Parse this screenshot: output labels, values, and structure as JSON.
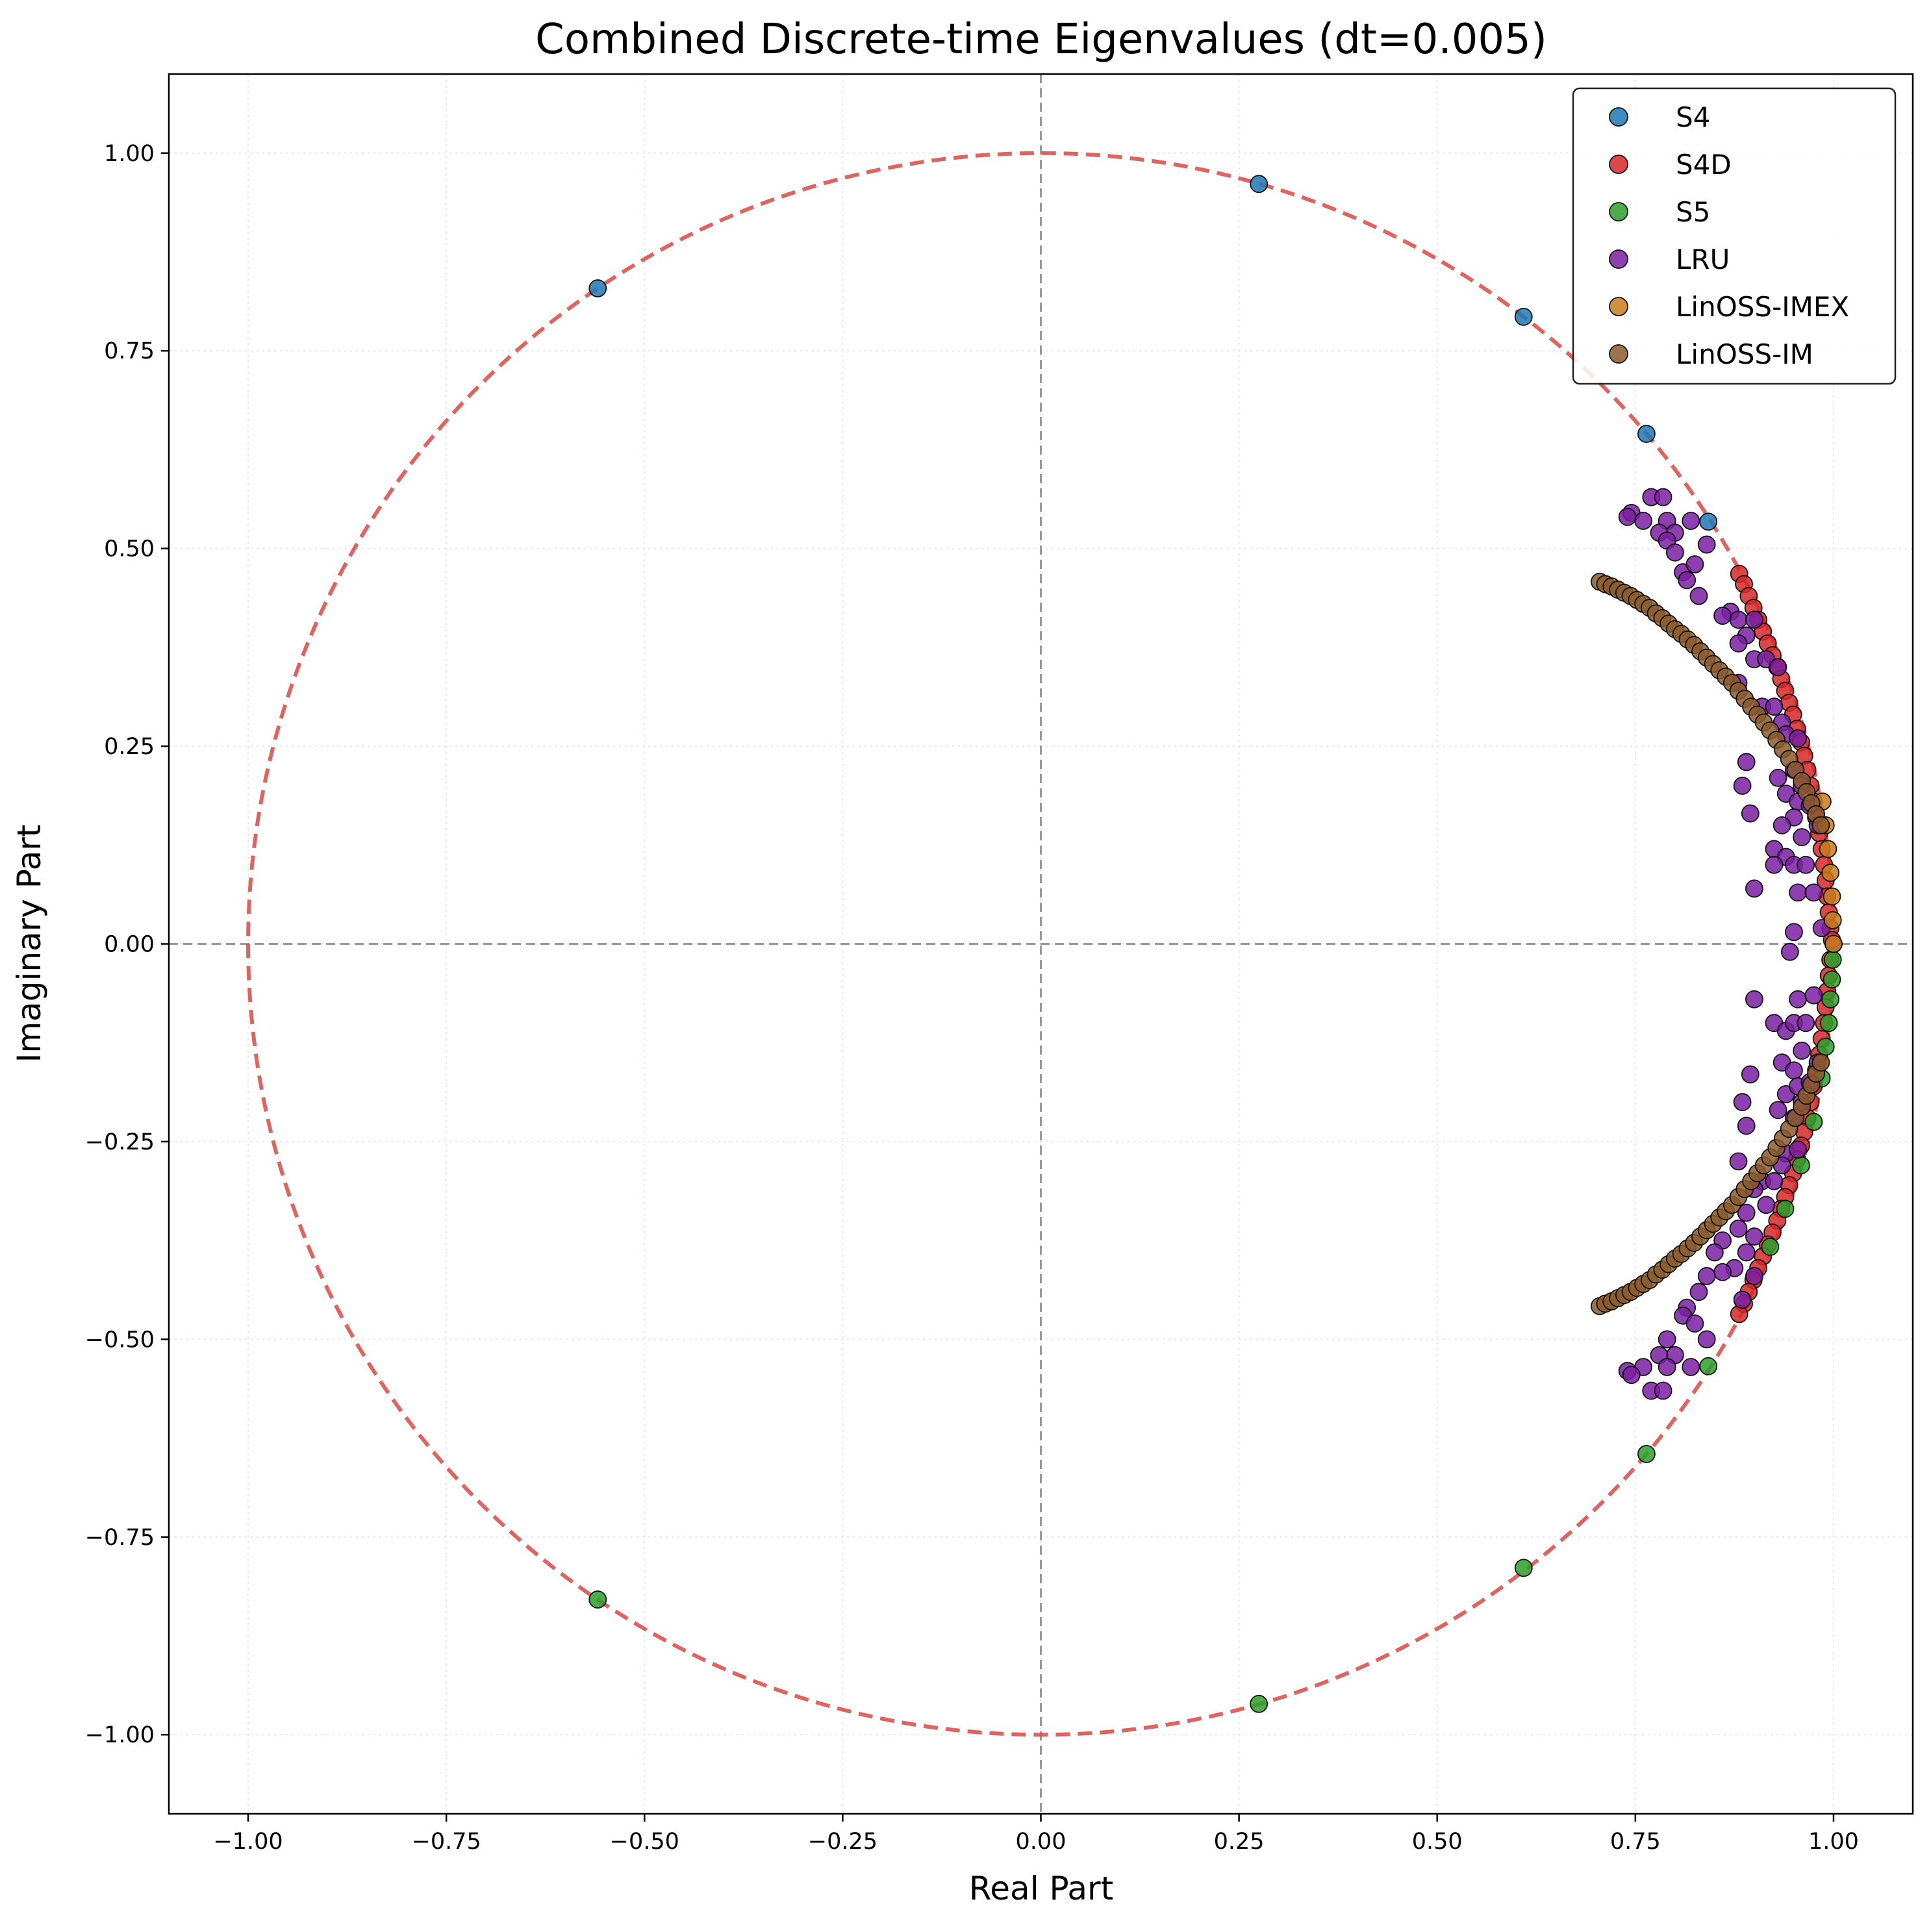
{
  "chart_data": {
    "type": "scatter",
    "title": "Combined Discrete-time Eigenvalues (dt=0.005)",
    "xlabel": "Real Part",
    "ylabel": "Imaginary Part",
    "xlim": [
      -1.1,
      1.1
    ],
    "ylim": [
      -1.1,
      1.1
    ],
    "xticks": [
      -1.0,
      -0.75,
      -0.5,
      -0.25,
      0.0,
      0.25,
      0.5,
      0.75,
      1.0
    ],
    "yticks": [
      -1.0,
      -0.75,
      -0.5,
      -0.25,
      0.0,
      0.25,
      0.5,
      0.75,
      1.0
    ],
    "xtick_labels": [
      "−1.00",
      "−0.75",
      "−0.50",
      "−0.25",
      "0.00",
      "0.25",
      "0.50",
      "0.75",
      "1.00"
    ],
    "ytick_labels": [
      "−1.00",
      "−0.75",
      "−0.50",
      "−0.25",
      "0.00",
      "0.25",
      "0.50",
      "0.75",
      "1.00"
    ],
    "grid": true,
    "legend_position": "top-right",
    "reference_lines": {
      "unit_circle": {
        "radius": 1.0,
        "style": "dashed",
        "color": "#d9534f"
      },
      "axes": {
        "x": 0.0,
        "y": 0.0,
        "style": "dashed",
        "color": "#999999"
      }
    },
    "series": [
      {
        "name": "S4",
        "color": "#1f77b4",
        "points": [
          [
            0.275,
            0.961
          ],
          [
            -0.559,
            0.829
          ],
          [
            0.609,
            0.793
          ],
          [
            0.764,
            0.645
          ],
          [
            0.842,
            0.534
          ],
          [
            1.0,
            0.0
          ]
        ]
      },
      {
        "name": "S4D",
        "color": "#d62728",
        "points": [
          [
            0.881,
            0.468
          ],
          [
            0.887,
            0.455
          ],
          [
            0.893,
            0.44
          ],
          [
            0.899,
            0.425
          ],
          [
            0.905,
            0.41
          ],
          [
            0.911,
            0.395
          ],
          [
            0.917,
            0.38
          ],
          [
            0.923,
            0.365
          ],
          [
            0.929,
            0.35
          ],
          [
            0.934,
            0.335
          ],
          [
            0.939,
            0.32
          ],
          [
            0.944,
            0.305
          ],
          [
            0.949,
            0.29
          ],
          [
            0.954,
            0.272
          ],
          [
            0.959,
            0.255
          ],
          [
            0.963,
            0.238
          ],
          [
            0.967,
            0.22
          ],
          [
            0.971,
            0.2
          ],
          [
            0.975,
            0.18
          ],
          [
            0.978,
            0.16
          ],
          [
            0.982,
            0.14
          ],
          [
            0.985,
            0.12
          ],
          [
            0.988,
            0.1
          ],
          [
            0.99,
            0.08
          ],
          [
            0.992,
            0.06
          ],
          [
            0.994,
            0.04
          ],
          [
            0.996,
            0.02
          ],
          [
            0.998,
            0.005
          ],
          [
            0.996,
            -0.02
          ],
          [
            0.994,
            -0.04
          ],
          [
            0.992,
            -0.06
          ],
          [
            0.99,
            -0.08
          ],
          [
            0.988,
            -0.1
          ],
          [
            0.985,
            -0.12
          ],
          [
            0.982,
            -0.14
          ],
          [
            0.978,
            -0.16
          ],
          [
            0.975,
            -0.18
          ],
          [
            0.971,
            -0.2
          ],
          [
            0.967,
            -0.22
          ],
          [
            0.963,
            -0.238
          ],
          [
            0.959,
            -0.255
          ],
          [
            0.954,
            -0.272
          ],
          [
            0.949,
            -0.29
          ],
          [
            0.944,
            -0.305
          ],
          [
            0.939,
            -0.32
          ],
          [
            0.934,
            -0.335
          ],
          [
            0.929,
            -0.35
          ],
          [
            0.923,
            -0.365
          ],
          [
            0.917,
            -0.38
          ],
          [
            0.911,
            -0.395
          ],
          [
            0.905,
            -0.41
          ],
          [
            0.899,
            -0.425
          ],
          [
            0.893,
            -0.44
          ],
          [
            0.887,
            -0.455
          ],
          [
            0.881,
            -0.468
          ]
        ]
      },
      {
        "name": "S5",
        "color": "#2ca02c",
        "points": [
          [
            0.275,
            -0.961
          ],
          [
            -0.559,
            -0.829
          ],
          [
            0.609,
            -0.789
          ],
          [
            0.764,
            -0.645
          ],
          [
            0.842,
            -0.534
          ],
          [
            0.92,
            -0.383
          ],
          [
            0.939,
            -0.335
          ],
          [
            0.959,
            -0.28
          ],
          [
            0.975,
            -0.225
          ],
          [
            0.985,
            -0.17
          ],
          [
            0.99,
            -0.13
          ],
          [
            0.994,
            -0.1
          ],
          [
            0.996,
            -0.07
          ],
          [
            0.998,
            -0.045
          ],
          [
            0.999,
            -0.02
          ]
        ]
      },
      {
        "name": "LRU",
        "color": "#7b1fa2",
        "points": [
          [
            0.77,
            0.565
          ],
          [
            0.785,
            0.565
          ],
          [
            0.745,
            0.545
          ],
          [
            0.74,
            0.54
          ],
          [
            0.76,
            0.535
          ],
          [
            0.79,
            0.535
          ],
          [
            0.82,
            0.535
          ],
          [
            0.8,
            0.52
          ],
          [
            0.78,
            0.52
          ],
          [
            0.84,
            0.505
          ],
          [
            0.79,
            0.51
          ],
          [
            0.8,
            0.495
          ],
          [
            0.81,
            0.47
          ],
          [
            0.825,
            0.48
          ],
          [
            0.815,
            0.46
          ],
          [
            0.83,
            0.44
          ],
          [
            0.87,
            0.42
          ],
          [
            0.88,
            0.41
          ],
          [
            0.9,
            0.41
          ],
          [
            0.86,
            0.415
          ],
          [
            0.89,
            0.39
          ],
          [
            0.88,
            0.38
          ],
          [
            0.9,
            0.36
          ],
          [
            0.915,
            0.36
          ],
          [
            0.93,
            0.35
          ],
          [
            0.88,
            0.33
          ],
          [
            0.91,
            0.3
          ],
          [
            0.925,
            0.3
          ],
          [
            0.935,
            0.28
          ],
          [
            0.94,
            0.265
          ],
          [
            0.955,
            0.26
          ],
          [
            0.89,
            0.23
          ],
          [
            0.95,
            0.22
          ],
          [
            0.96,
            0.2
          ],
          [
            0.885,
            0.2
          ],
          [
            0.93,
            0.21
          ],
          [
            0.94,
            0.19
          ],
          [
            0.955,
            0.18
          ],
          [
            0.895,
            0.165
          ],
          [
            0.97,
            0.175
          ],
          [
            0.95,
            0.16
          ],
          [
            0.98,
            0.15
          ],
          [
            0.935,
            0.15
          ],
          [
            0.96,
            0.135
          ],
          [
            0.925,
            0.12
          ],
          [
            0.94,
            0.11
          ],
          [
            0.925,
            0.1
          ],
          [
            0.95,
            0.1
          ],
          [
            0.965,
            0.1
          ],
          [
            0.9,
            0.07
          ],
          [
            0.955,
            0.065
          ],
          [
            0.975,
            0.065
          ],
          [
            0.985,
            0.02
          ],
          [
            0.95,
            0.015
          ],
          [
            0.945,
            -0.01
          ],
          [
            0.9,
            -0.07
          ],
          [
            0.955,
            -0.07
          ],
          [
            0.975,
            -0.065
          ],
          [
            0.925,
            -0.1
          ],
          [
            0.94,
            -0.11
          ],
          [
            0.95,
            -0.1
          ],
          [
            0.965,
            -0.1
          ],
          [
            0.96,
            -0.135
          ],
          [
            0.935,
            -0.15
          ],
          [
            0.98,
            -0.15
          ],
          [
            0.95,
            -0.16
          ],
          [
            0.895,
            -0.165
          ],
          [
            0.94,
            -0.19
          ],
          [
            0.955,
            -0.18
          ],
          [
            0.97,
            -0.175
          ],
          [
            0.885,
            -0.2
          ],
          [
            0.93,
            -0.21
          ],
          [
            0.95,
            -0.22
          ],
          [
            0.89,
            -0.23
          ],
          [
            0.96,
            -0.2
          ],
          [
            0.94,
            -0.265
          ],
          [
            0.955,
            -0.26
          ],
          [
            0.88,
            -0.275
          ],
          [
            0.935,
            -0.28
          ],
          [
            0.91,
            -0.3
          ],
          [
            0.925,
            -0.3
          ],
          [
            0.9,
            -0.31
          ],
          [
            0.89,
            -0.34
          ],
          [
            0.915,
            -0.33
          ],
          [
            0.88,
            -0.36
          ],
          [
            0.9,
            -0.37
          ],
          [
            0.86,
            -0.375
          ],
          [
            0.85,
            -0.39
          ],
          [
            0.89,
            -0.39
          ],
          [
            0.875,
            -0.41
          ],
          [
            0.9,
            -0.42
          ],
          [
            0.86,
            -0.415
          ],
          [
            0.84,
            -0.42
          ],
          [
            0.83,
            -0.44
          ],
          [
            0.885,
            -0.45
          ],
          [
            0.815,
            -0.46
          ],
          [
            0.81,
            -0.47
          ],
          [
            0.825,
            -0.48
          ],
          [
            0.79,
            -0.5
          ],
          [
            0.84,
            -0.5
          ],
          [
            0.8,
            -0.52
          ],
          [
            0.78,
            -0.52
          ],
          [
            0.76,
            -0.535
          ],
          [
            0.79,
            -0.535
          ],
          [
            0.82,
            -0.535
          ],
          [
            0.74,
            -0.54
          ],
          [
            0.745,
            -0.545
          ],
          [
            0.77,
            -0.565
          ],
          [
            0.785,
            -0.565
          ]
        ]
      },
      {
        "name": "LinOSS-IMEX",
        "color": "#c77c1e",
        "points": [
          [
            1.0,
            0.0
          ],
          [
            0.999,
            0.03
          ],
          [
            0.998,
            0.06
          ],
          [
            0.996,
            0.09
          ],
          [
            0.993,
            0.12
          ],
          [
            0.99,
            0.15
          ],
          [
            0.986,
            0.18
          ]
        ]
      },
      {
        "name": "LinOSS-IM",
        "color": "#8b5a2b",
        "points": [
          [
            0.705,
            0.458
          ],
          [
            0.712,
            0.455
          ],
          [
            0.72,
            0.452
          ],
          [
            0.728,
            0.448
          ],
          [
            0.736,
            0.444
          ],
          [
            0.744,
            0.44
          ],
          [
            0.752,
            0.435
          ],
          [
            0.76,
            0.43
          ],
          [
            0.768,
            0.425
          ],
          [
            0.776,
            0.418
          ],
          [
            0.784,
            0.412
          ],
          [
            0.792,
            0.405
          ],
          [
            0.8,
            0.398
          ],
          [
            0.808,
            0.392
          ],
          [
            0.816,
            0.385
          ],
          [
            0.824,
            0.378
          ],
          [
            0.832,
            0.37
          ],
          [
            0.84,
            0.362
          ],
          [
            0.848,
            0.354
          ],
          [
            0.856,
            0.346
          ],
          [
            0.864,
            0.338
          ],
          [
            0.872,
            0.33
          ],
          [
            0.88,
            0.32
          ],
          [
            0.888,
            0.31
          ],
          [
            0.896,
            0.3
          ],
          [
            0.904,
            0.29
          ],
          [
            0.912,
            0.28
          ],
          [
            0.92,
            0.27
          ],
          [
            0.928,
            0.258
          ],
          [
            0.936,
            0.246
          ],
          [
            0.944,
            0.234
          ],
          [
            0.952,
            0.22
          ],
          [
            0.96,
            0.206
          ],
          [
            0.966,
            0.192
          ],
          [
            0.972,
            0.178
          ],
          [
            0.978,
            0.164
          ],
          [
            0.984,
            0.15
          ],
          [
            0.705,
            -0.458
          ],
          [
            0.712,
            -0.455
          ],
          [
            0.72,
            -0.452
          ],
          [
            0.728,
            -0.448
          ],
          [
            0.736,
            -0.444
          ],
          [
            0.744,
            -0.44
          ],
          [
            0.752,
            -0.435
          ],
          [
            0.76,
            -0.43
          ],
          [
            0.768,
            -0.425
          ],
          [
            0.776,
            -0.418
          ],
          [
            0.784,
            -0.412
          ],
          [
            0.792,
            -0.405
          ],
          [
            0.8,
            -0.398
          ],
          [
            0.808,
            -0.392
          ],
          [
            0.816,
            -0.385
          ],
          [
            0.824,
            -0.378
          ],
          [
            0.832,
            -0.37
          ],
          [
            0.84,
            -0.362
          ],
          [
            0.848,
            -0.354
          ],
          [
            0.856,
            -0.346
          ],
          [
            0.864,
            -0.338
          ],
          [
            0.872,
            -0.33
          ],
          [
            0.88,
            -0.32
          ],
          [
            0.888,
            -0.31
          ],
          [
            0.896,
            -0.3
          ],
          [
            0.904,
            -0.29
          ],
          [
            0.912,
            -0.28
          ],
          [
            0.92,
            -0.27
          ],
          [
            0.928,
            -0.258
          ],
          [
            0.936,
            -0.246
          ],
          [
            0.944,
            -0.234
          ],
          [
            0.952,
            -0.22
          ],
          [
            0.96,
            -0.206
          ],
          [
            0.966,
            -0.192
          ],
          [
            0.972,
            -0.178
          ],
          [
            0.978,
            -0.164
          ],
          [
            0.984,
            -0.15
          ]
        ]
      }
    ]
  }
}
